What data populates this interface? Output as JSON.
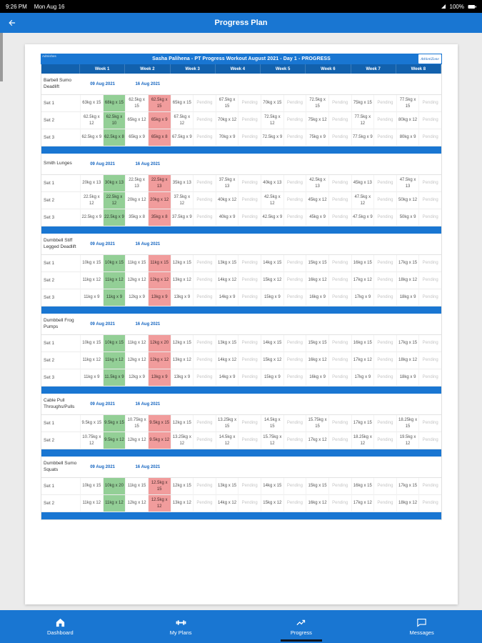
{
  "status_bar": {
    "time": "9:26 PM",
    "date": "Mon Aug 16",
    "battery_percent": "100%"
  },
  "app_bar": {
    "title": "Progress Plan"
  },
  "colors": {
    "primary": "#1976d2",
    "header_row": "#1261ad",
    "achieved": "#93cf96",
    "missed": "#f19c9c",
    "pending_text": "#c4c4c4"
  },
  "report": {
    "corner_text": "Admishes",
    "title": "Sasha Palihena - PT Progress Workout August 2021 - Day 1 - PROGRESS",
    "logo_text": "AthletiZone",
    "pending_label": "Pending",
    "week_headers": [
      "Week 1",
      "Week 2",
      "Week 3",
      "Week 4",
      "Week 5",
      "Week 6",
      "Week 7",
      "Week 8"
    ],
    "exercises": [
      {
        "name": "Barbell Sumo Deadlift",
        "dates": [
          "09 Aug 2021",
          "16 Aug 2021"
        ],
        "sets": [
          {
            "label": "Set 1",
            "weeks": [
              {
                "plan": "63kg x 15",
                "actual": "68kg x 15",
                "result": "achieved"
              },
              {
                "plan": "62.5kg x 15",
                "actual": "62.5kg x 15",
                "result": "missed"
              },
              {
                "plan": "65kg x 15"
              },
              {
                "plan": "67.5kg x 15"
              },
              {
                "plan": "70kg x 15"
              },
              {
                "plan": "72.5kg x 15"
              },
              {
                "plan": "75kg x 15"
              },
              {
                "plan": "77.5kg x 15"
              }
            ]
          },
          {
            "label": "Set 2",
            "weeks": [
              {
                "plan": "62.5kg x 12",
                "actual": "62.5kg x 10",
                "result": "achieved"
              },
              {
                "plan": "65kg x 12",
                "actual": "65kg x 9",
                "result": "missed"
              },
              {
                "plan": "67.5kg x 12"
              },
              {
                "plan": "70kg x 12"
              },
              {
                "plan": "72.5kg x 12"
              },
              {
                "plan": "75kg x 12"
              },
              {
                "plan": "77.5kg x 12"
              },
              {
                "plan": "80kg x 12"
              }
            ]
          },
          {
            "label": "Set 3",
            "weeks": [
              {
                "plan": "62.5kg x 9",
                "actual": "62.5kg x 8",
                "result": "achieved"
              },
              {
                "plan": "65kg x 9",
                "actual": "65kg x 8",
                "result": "missed"
              },
              {
                "plan": "67.5kg x 9"
              },
              {
                "plan": "70kg x 9"
              },
              {
                "plan": "72.5kg x 9"
              },
              {
                "plan": "75kg x 9"
              },
              {
                "plan": "77.5kg x 9"
              },
              {
                "plan": "80kg x 9"
              }
            ]
          }
        ]
      },
      {
        "name": "Smith Lunges",
        "dates": [
          "09 Aug 2021",
          "16 Aug 2021"
        ],
        "sets": [
          {
            "label": "Set 1",
            "weeks": [
              {
                "plan": "20kg x 13",
                "actual": "30kg x 13",
                "result": "achieved"
              },
              {
                "plan": "22.5kg x 13",
                "actual": "22.5kg x 13",
                "result": "missed"
              },
              {
                "plan": "35kg x 13"
              },
              {
                "plan": "37.5kg x 13"
              },
              {
                "plan": "40kg x 13"
              },
              {
                "plan": "42.5kg x 13"
              },
              {
                "plan": "45kg x 13"
              },
              {
                "plan": "47.5kg x 13"
              }
            ]
          },
          {
            "label": "Set 2",
            "weeks": [
              {
                "plan": "22.5kg x 12",
                "actual": "22.5kg x 12",
                "result": "achieved"
              },
              {
                "plan": "20kg x 12",
                "actual": "20kg x 12",
                "result": "missed"
              },
              {
                "plan": "37.5kg x 12"
              },
              {
                "plan": "40kg x 12"
              },
              {
                "plan": "42.5kg x 12"
              },
              {
                "plan": "45kg x 12"
              },
              {
                "plan": "47.5kg x 12"
              },
              {
                "plan": "50kg x 12"
              }
            ]
          },
          {
            "label": "Set 3",
            "weeks": [
              {
                "plan": "22.5kg x 9",
                "actual": "22.5kg x 9",
                "result": "achieved"
              },
              {
                "plan": "35kg x 8",
                "actual": "35kg x 8",
                "result": "missed"
              },
              {
                "plan": "37.5kg x 9"
              },
              {
                "plan": "40kg x 9"
              },
              {
                "plan": "42.5kg x 9"
              },
              {
                "plan": "45kg x 9"
              },
              {
                "plan": "47.5kg x 9"
              },
              {
                "plan": "50kg x 9"
              }
            ]
          }
        ]
      },
      {
        "name": "Dumbbell Stiff Legged Deadlift",
        "dates": [
          "09 Aug 2021",
          "16 Aug 2021"
        ],
        "sets": [
          {
            "label": "Set 1",
            "weeks": [
              {
                "plan": "10kg x 15",
                "actual": "10kg x 15",
                "result": "achieved"
              },
              {
                "plan": "11kg x 15",
                "actual": "11kg x 15",
                "result": "missed"
              },
              {
                "plan": "12kg x 15"
              },
              {
                "plan": "13kg x 15"
              },
              {
                "plan": "14kg x 15"
              },
              {
                "plan": "15kg x 15"
              },
              {
                "plan": "16kg x 15"
              },
              {
                "plan": "17kg x 15"
              }
            ]
          },
          {
            "label": "Set 2",
            "weeks": [
              {
                "plan": "11kg x 12",
                "actual": "11kg x 12",
                "result": "achieved"
              },
              {
                "plan": "12kg x 12",
                "actual": "12kg x 12",
                "result": "missed"
              },
              {
                "plan": "13kg x 12"
              },
              {
                "plan": "14kg x 12"
              },
              {
                "plan": "15kg x 12"
              },
              {
                "plan": "16kg x 12"
              },
              {
                "plan": "17kg x 12"
              },
              {
                "plan": "18kg x 12"
              }
            ]
          },
          {
            "label": "Set 3",
            "weeks": [
              {
                "plan": "11kg x 9",
                "actual": "11kg x 9",
                "result": "achieved"
              },
              {
                "plan": "12kg x 9",
                "actual": "13kg x 9",
                "result": "missed"
              },
              {
                "plan": "13kg x 9"
              },
              {
                "plan": "14kg x 9"
              },
              {
                "plan": "15kg x 9"
              },
              {
                "plan": "16kg x 9"
              },
              {
                "plan": "17kg x 9"
              },
              {
                "plan": "18kg x 9"
              }
            ]
          }
        ]
      },
      {
        "name": "Dumbbell Frog Pumps",
        "dates": [
          "09 Aug 2021",
          "16 Aug 2021"
        ],
        "sets": [
          {
            "label": "Set 1",
            "weeks": [
              {
                "plan": "10kg x 15",
                "actual": "10kg x 15",
                "result": "achieved"
              },
              {
                "plan": "11kg x 12",
                "actual": "12kg x 20",
                "result": "missed"
              },
              {
                "plan": "12kg x 15"
              },
              {
                "plan": "13kg x 15"
              },
              {
                "plan": "14kg x 15"
              },
              {
                "plan": "15kg x 15"
              },
              {
                "plan": "16kg x 15"
              },
              {
                "plan": "17kg x 15"
              }
            ]
          },
          {
            "label": "Set 2",
            "weeks": [
              {
                "plan": "11kg x 12",
                "actual": "11kg x 12",
                "result": "achieved"
              },
              {
                "plan": "12kg x 12",
                "actual": "12kg x 12",
                "result": "missed"
              },
              {
                "plan": "13kg x 12"
              },
              {
                "plan": "14kg x 12"
              },
              {
                "plan": "15kg x 12"
              },
              {
                "plan": "16kg x 12"
              },
              {
                "plan": "17kg x 12"
              },
              {
                "plan": "18kg x 12"
              }
            ]
          },
          {
            "label": "Set 3",
            "weeks": [
              {
                "plan": "11kg x 9",
                "actual": "11.5kg x 9",
                "result": "achieved"
              },
              {
                "plan": "12kg x 9",
                "actual": "13kg x 9",
                "result": "missed"
              },
              {
                "plan": "13kg x 9"
              },
              {
                "plan": "14kg x 9"
              },
              {
                "plan": "15kg x 9"
              },
              {
                "plan": "16kg x 9"
              },
              {
                "plan": "17kg x 9"
              },
              {
                "plan": "18kg x 9"
              }
            ]
          }
        ]
      },
      {
        "name": "Cable Pull Throughs/Pulls",
        "dates": [
          "09 Aug 2021",
          "16 Aug 2021"
        ],
        "sets": [
          {
            "label": "Set 1",
            "weeks": [
              {
                "plan": "9.5kg x 15",
                "actual": "9.5kg x 15",
                "result": "achieved"
              },
              {
                "plan": "10.75kg x 15",
                "actual": "9.5kg x 15",
                "result": "missed"
              },
              {
                "plan": "12kg x 15"
              },
              {
                "plan": "13.25kg x 15"
              },
              {
                "plan": "14.5kg x 15"
              },
              {
                "plan": "15.75kg x 15"
              },
              {
                "plan": "17kg x 15"
              },
              {
                "plan": "18.25kg x 15"
              }
            ]
          },
          {
            "label": "Set 2",
            "weeks": [
              {
                "plan": "10.75kg x 12",
                "actual": "9.5kg x 12",
                "result": "achieved"
              },
              {
                "plan": "12kg x 12",
                "actual": "9.5kg x 12",
                "result": "missed"
              },
              {
                "plan": "13.25kg x 12"
              },
              {
                "plan": "14.5kg x 12"
              },
              {
                "plan": "15.75kg x 12"
              },
              {
                "plan": "17kg x 12"
              },
              {
                "plan": "18.25kg x 12"
              },
              {
                "plan": "19.5kg x 12"
              }
            ]
          }
        ]
      },
      {
        "name": "Dumbbell Sumo Squats",
        "dates": [
          "09 Aug 2021",
          "16 Aug 2021"
        ],
        "sets": [
          {
            "label": "Set 1",
            "weeks": [
              {
                "plan": "10kg x 15",
                "actual": "10kg x 20",
                "result": "achieved"
              },
              {
                "plan": "11kg x 15",
                "actual": "12.5kg x 15",
                "result": "missed"
              },
              {
                "plan": "12kg x 15"
              },
              {
                "plan": "13kg x 15"
              },
              {
                "plan": "14kg x 15"
              },
              {
                "plan": "15kg x 15"
              },
              {
                "plan": "16kg x 15"
              },
              {
                "plan": "17kg x 15"
              }
            ]
          },
          {
            "label": "Set 2",
            "weeks": [
              {
                "plan": "11kg x 12",
                "actual": "11kg x 12",
                "result": "achieved"
              },
              {
                "plan": "12kg x 12",
                "actual": "12.5kg x 12",
                "result": "missed"
              },
              {
                "plan": "13kg x 12"
              },
              {
                "plan": "14kg x 12"
              },
              {
                "plan": "15kg x 12"
              },
              {
                "plan": "16kg x 12"
              },
              {
                "plan": "17kg x 12"
              },
              {
                "plan": "18kg x 12"
              }
            ]
          }
        ]
      }
    ]
  },
  "bottom_nav": {
    "items": [
      {
        "label": "Dashboard",
        "icon": "home",
        "active": false
      },
      {
        "label": "My Plans",
        "icon": "plans",
        "active": false
      },
      {
        "label": "Progress",
        "icon": "trending-up",
        "active": true
      },
      {
        "label": "Messages",
        "icon": "chat",
        "active": false
      }
    ]
  }
}
